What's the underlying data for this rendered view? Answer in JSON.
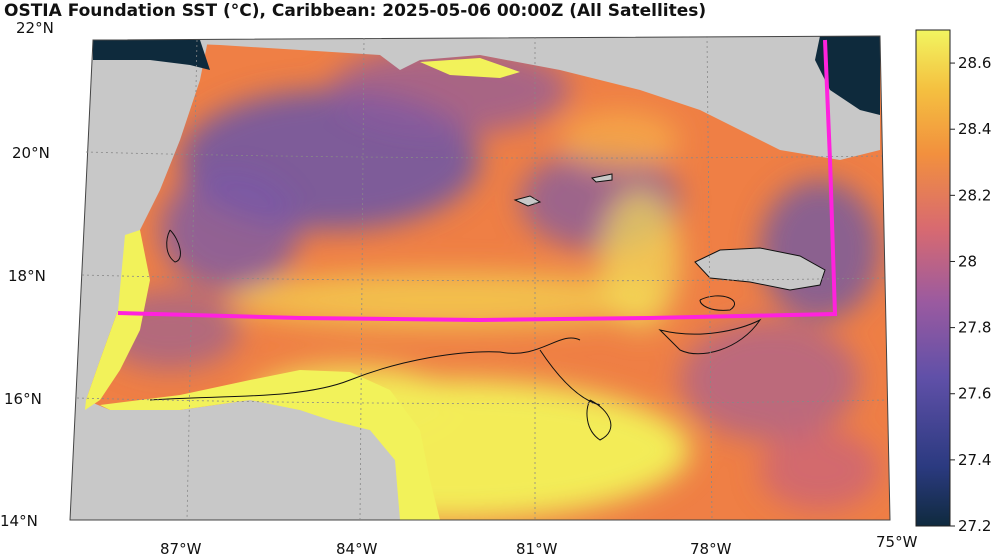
{
  "title": "OSTIA Foundation SST (°C), Caribbean: 2025-05-06 00:00Z (All Satellites)",
  "colors": {
    "land": "#c8c8c8",
    "ocean_bg": "#f08a3a",
    "cool": "#6a55a8",
    "warm": "#f2f25a",
    "track": "#ff22dd",
    "coast": "#111111",
    "deep": "#0e2a3c"
  },
  "axes": {
    "lat_labels": [
      "22°N",
      "20°N",
      "18°N",
      "16°N",
      "14°N"
    ],
    "lon_labels": [
      "87°W",
      "84°W",
      "81°W",
      "78°W",
      "75°W"
    ]
  },
  "colorbar": {
    "min": 27.2,
    "max": 28.7,
    "tick_labels": [
      "28.6",
      "28.4",
      "28.2",
      "28",
      "27.8",
      "27.6",
      "27.4",
      "27.2"
    ],
    "tick_values": [
      28.6,
      28.4,
      28.2,
      28.0,
      27.8,
      27.6,
      27.4,
      27.2
    ]
  }
}
